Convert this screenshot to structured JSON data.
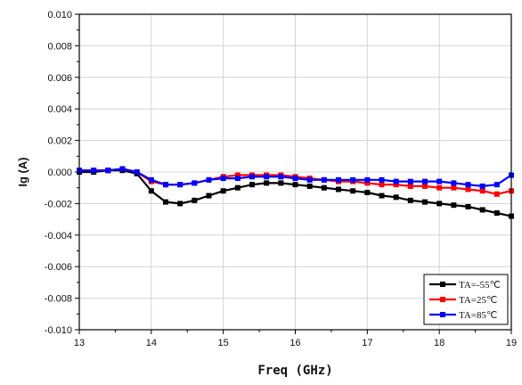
{
  "chart_data": {
    "type": "line",
    "title": "",
    "xlabel": "Freq (GHz)",
    "ylabel": "Ig (A)",
    "xlim": [
      13,
      19
    ],
    "ylim": [
      -0.01,
      0.01
    ],
    "x_ticks": [
      "13",
      "14",
      "15",
      "16",
      "17",
      "18",
      "19"
    ],
    "y_ticks": [
      "0.010",
      "0.008",
      "0.006",
      "0.004",
      "0.002",
      "0.000",
      "-0.002",
      "-0.004",
      "-0.006",
      "-0.008",
      "-0.010"
    ],
    "grid": true,
    "legend_position": "bottom-right",
    "series": [
      {
        "name": "TA=-55℃",
        "color": "#000000",
        "x": [
          13.0,
          13.2,
          13.4,
          13.6,
          13.8,
          14.0,
          14.2,
          14.4,
          14.6,
          14.8,
          15.0,
          15.2,
          15.4,
          15.6,
          15.8,
          16.0,
          16.2,
          16.4,
          16.6,
          16.8,
          17.0,
          17.2,
          17.4,
          17.6,
          17.8,
          18.0,
          18.2,
          18.4,
          18.6,
          18.8,
          19.0
        ],
        "y": [
          0.0,
          0.0,
          0.0001,
          0.0001,
          -0.0001,
          -0.0012,
          -0.0019,
          -0.002,
          -0.0018,
          -0.0015,
          -0.0012,
          -0.001,
          -0.0008,
          -0.0007,
          -0.0007,
          -0.0008,
          -0.0009,
          -0.001,
          -0.0011,
          -0.0012,
          -0.0013,
          -0.0015,
          -0.0016,
          -0.0018,
          -0.0019,
          -0.002,
          -0.0021,
          -0.0022,
          -0.0024,
          -0.0026,
          -0.0028
        ]
      },
      {
        "name": "TA=25℃",
        "color": "#ff0000",
        "x": [
          13.0,
          13.2,
          13.4,
          13.6,
          13.8,
          14.0,
          14.2,
          14.4,
          14.6,
          14.8,
          15.0,
          15.2,
          15.4,
          15.6,
          15.8,
          16.0,
          16.2,
          16.4,
          16.6,
          16.8,
          17.0,
          17.2,
          17.4,
          17.6,
          17.8,
          18.0,
          18.2,
          18.4,
          18.6,
          18.8,
          19.0
        ],
        "y": [
          0.0001,
          0.0001,
          0.0001,
          0.0002,
          0.0,
          -0.0006,
          -0.0008,
          -0.0008,
          -0.0007,
          -0.0005,
          -0.0003,
          -0.0002,
          -0.0002,
          -0.0002,
          -0.0002,
          -0.0003,
          -0.0004,
          -0.0005,
          -0.0006,
          -0.0006,
          -0.0007,
          -0.0008,
          -0.0008,
          -0.0009,
          -0.0009,
          -0.001,
          -0.001,
          -0.0011,
          -0.0012,
          -0.0014,
          -0.0012
        ]
      },
      {
        "name": "TA=85℃",
        "color": "#0000ff",
        "x": [
          13.0,
          13.2,
          13.4,
          13.6,
          13.8,
          14.0,
          14.2,
          14.4,
          14.6,
          14.8,
          15.0,
          15.2,
          15.4,
          15.6,
          15.8,
          16.0,
          16.2,
          16.4,
          16.6,
          16.8,
          17.0,
          17.2,
          17.4,
          17.6,
          17.8,
          18.0,
          18.2,
          18.4,
          18.6,
          18.8,
          19.0
        ],
        "y": [
          0.0001,
          0.0001,
          0.0001,
          0.0002,
          0.0,
          -0.0005,
          -0.0008,
          -0.0008,
          -0.0007,
          -0.0005,
          -0.0004,
          -0.0004,
          -0.0003,
          -0.0003,
          -0.0003,
          -0.0004,
          -0.0005,
          -0.0005,
          -0.0005,
          -0.0005,
          -0.0005,
          -0.0005,
          -0.0006,
          -0.0006,
          -0.0006,
          -0.0006,
          -0.0007,
          -0.0008,
          -0.0009,
          -0.0008,
          -0.0002
        ]
      }
    ]
  }
}
